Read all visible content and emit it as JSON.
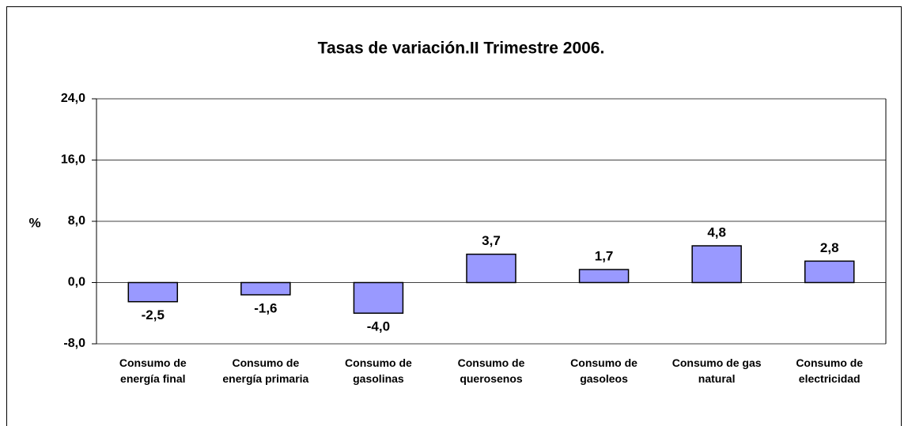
{
  "chart_data": {
    "type": "bar",
    "title": "Tasas de variación.II Trimestre 2006.",
    "y_label": "%",
    "categories": [
      "Consumo de energía final",
      "Consumo de energía primaria",
      "Consumo de gasolinas",
      "Consumo de querosenos",
      "Consumo de gasoleos",
      "Consumo de gas natural",
      "Consumo de electricidad"
    ],
    "values": [
      -2.5,
      -1.6,
      -4.0,
      3.7,
      1.7,
      4.8,
      2.8
    ],
    "value_labels": [
      "-2,5",
      "-1,6",
      "-4,0",
      "3,7",
      "1,7",
      "4,8",
      "2,8"
    ],
    "color": "#9999ff",
    "ylim": [
      -8,
      24
    ],
    "yticks": [
      {
        "value": -8,
        "label": "-8,0"
      },
      {
        "value": 0,
        "label": "0,0"
      },
      {
        "value": 8,
        "label": "8,0"
      },
      {
        "value": 16,
        "label": "16,0"
      },
      {
        "value": 24,
        "label": "24,0"
      }
    ],
    "grid": true
  }
}
